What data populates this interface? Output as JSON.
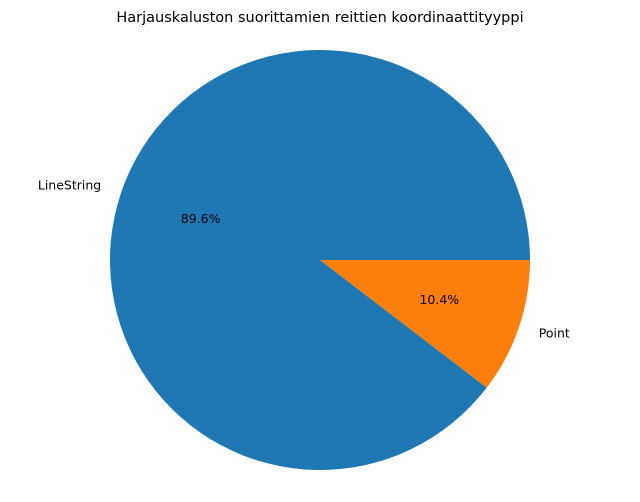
{
  "chart_data": {
    "type": "pie",
    "title": "Harjauskaluston suorittamien reittien koordinaattityyppi",
    "slices": [
      {
        "label": "LineString",
        "value": 89.6,
        "pct_label": "89.6%",
        "color": "#1f77b4"
      },
      {
        "label": "Point",
        "value": 10.4,
        "pct_label": "10.4%",
        "color": "#ff7f0e"
      }
    ],
    "start_angle_deg": 0,
    "direction": "counterclockwise",
    "legend": "none"
  }
}
